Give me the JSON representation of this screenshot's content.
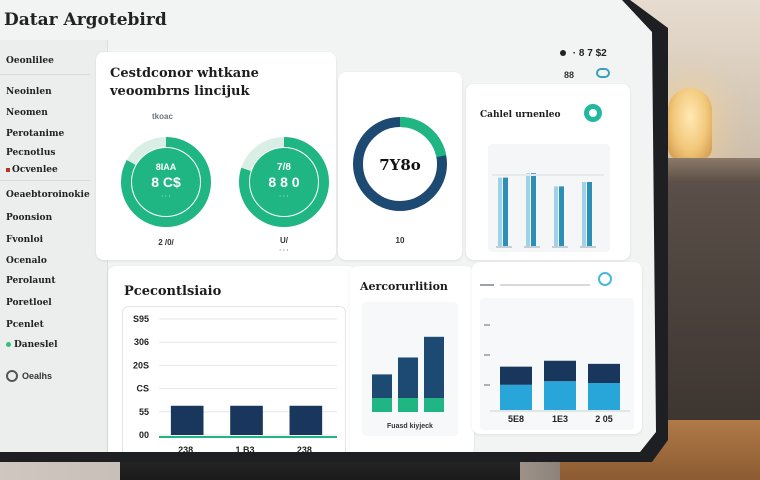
{
  "app": {
    "title": "Datar Argotebird",
    "status_time": "· 8 7 $2",
    "status_icons": "88"
  },
  "sidebar": {
    "items": [
      {
        "label": "Oeonlilee",
        "top": 16
      },
      {
        "label": "Neoinlen",
        "top": 47
      },
      {
        "label": "Neomen",
        "top": 68
      },
      {
        "label": "Perotanime",
        "top": 89
      },
      {
        "label": "Pecnotlus",
        "top": 108
      },
      {
        "label": "Ocvenlee",
        "top": 125
      },
      {
        "label": "Oeaebtoroinokie",
        "top": 150
      },
      {
        "label": "Poonsion",
        "top": 173
      },
      {
        "label": "Fvonloi",
        "top": 195
      },
      {
        "label": "Ocenalo",
        "top": 216
      },
      {
        "label": "Perolaunt",
        "top": 236
      },
      {
        "label": "Poretloel",
        "top": 258
      },
      {
        "label": "Pcenlet",
        "top": 280
      },
      {
        "label": "Daneslel",
        "top": 300
      }
    ],
    "user_label": "Oealhs"
  },
  "overview": {
    "title_line1": "Cestdconor whtkane",
    "title_line2": "veoombrns lincijuk",
    "tab_label": "tkoac",
    "gauges": [
      {
        "label": "8IAA",
        "value": "8 C$",
        "sub": "· · ·",
        "caption": "2 /0/",
        "percent": 0.83,
        "color": "#1fb684"
      },
      {
        "label": "7/8",
        "value": "8 8 0",
        "sub": "· · ·",
        "caption": "U/",
        "caption2": "· · ·",
        "percent": 0.8,
        "color": "#1fb684"
      }
    ]
  },
  "donut": {
    "value": "7Y8o",
    "caption": "10",
    "percent": 0.78,
    "colors": {
      "track": "#1c4a72",
      "fill": "#1fb684"
    }
  },
  "bars_panel": {
    "title": "Cahlel urnenleo",
    "values": [
      0.8,
      0.85,
      0.7,
      0.75
    ],
    "colors": {
      "bar": "#2b8fb8",
      "bar_light": "#9fd2e6"
    }
  },
  "performance": {
    "title": "Pcecontlsiaio",
    "y_ticks": [
      "S95",
      "306",
      "20S",
      "CS",
      "55",
      "00"
    ],
    "x_labels": [
      "238",
      "1 B3",
      "238"
    ],
    "bars": [
      0.42,
      0.42,
      0.42
    ],
    "colors": {
      "bar": "#19365c",
      "line": "#1fb684"
    }
  },
  "acceleration": {
    "title": "Aercorurlition",
    "x_label": "Fuasd kiyjeck",
    "bars": [
      0.4,
      0.58,
      0.8
    ],
    "colors": {
      "dark": "#1c4a72",
      "teal": "#1fb684"
    }
  },
  "stack_panel": {
    "x_labels": [
      "5E8",
      "1E3",
      "2 05"
    ],
    "stacks": [
      {
        "top": 0.55,
        "bottom": 0.42
      },
      {
        "top": 0.62,
        "bottom": 0.48
      },
      {
        "top": 0.58,
        "bottom": 0.45
      }
    ],
    "colors": {
      "top": "#19365c",
      "bottom": "#28a6d9"
    }
  }
}
